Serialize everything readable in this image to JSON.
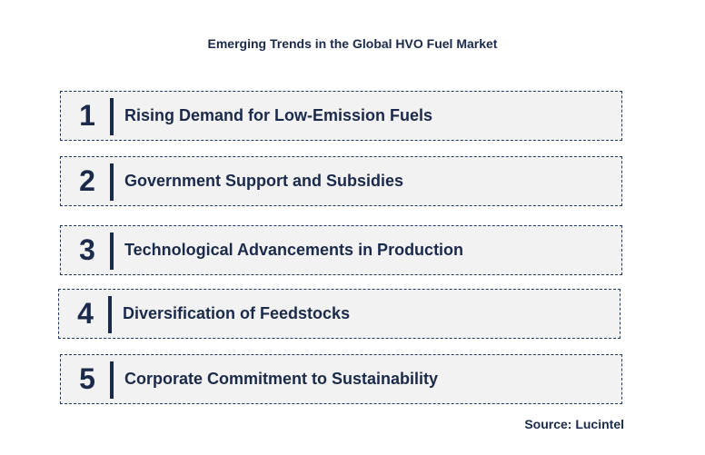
{
  "title": "Emerging Trends in the Global HVO Fuel Market",
  "trends": [
    {
      "number": "1",
      "label": "Rising Demand for Low-Emission Fuels"
    },
    {
      "number": "2",
      "label": "Government Support and Subsidies"
    },
    {
      "number": "3",
      "label": "Technological Advancements in Production"
    },
    {
      "number": "4",
      "label": "Diversification of Feedstocks"
    },
    {
      "number": "5",
      "label": "Corporate Commitment to Sustainability"
    }
  ],
  "source": "Source: Lucintel",
  "colors": {
    "text": "#1b2a4a",
    "box_fill": "#f2f2f2",
    "box_border": "#1f3864"
  }
}
